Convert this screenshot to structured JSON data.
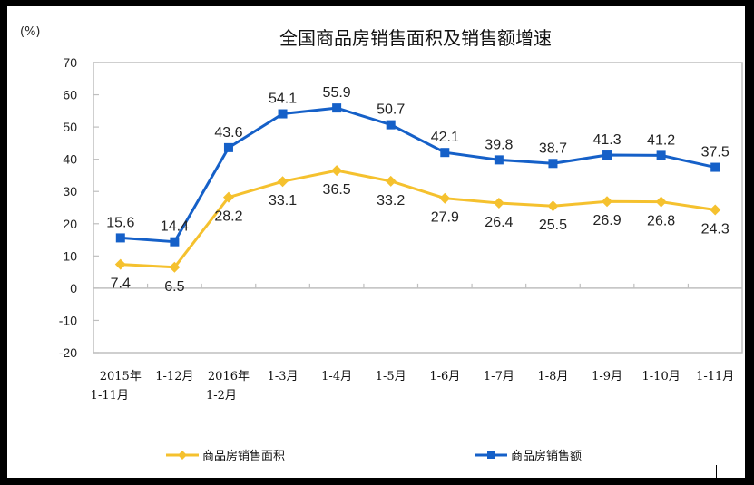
{
  "chart_data": {
    "type": "line",
    "title": "全国商品房销售面积及销售额增速",
    "ylabel": "(%)",
    "xlabel": "",
    "ylim": [
      -20,
      70
    ],
    "yticks": [
      70,
      60,
      50,
      40,
      30,
      20,
      10,
      0,
      -10,
      -20
    ],
    "grid": false,
    "legend_position": "bottom",
    "categories": [
      [
        "2015年",
        "1-11月"
      ],
      [
        "1-12月"
      ],
      [
        "2016年",
        "1-2月"
      ],
      [
        "1-3月"
      ],
      [
        "1-4月"
      ],
      [
        "1-5月"
      ],
      [
        "1-6月"
      ],
      [
        "1-7月"
      ],
      [
        "1-8月"
      ],
      [
        "1-9月"
      ],
      [
        "1-10月"
      ],
      [
        "1-11月"
      ]
    ],
    "series": [
      {
        "name": "商品房销售面积",
        "color": "#F5C12E",
        "marker": "diamond",
        "label_position": "below",
        "values": [
          7.4,
          6.5,
          28.2,
          33.1,
          36.5,
          33.2,
          27.9,
          26.4,
          25.5,
          26.9,
          26.8,
          24.3
        ]
      },
      {
        "name": "商品房销售额",
        "color": "#1560C8",
        "marker": "square",
        "label_position": "above",
        "values": [
          15.6,
          14.4,
          43.6,
          54.1,
          55.9,
          50.7,
          42.1,
          39.8,
          38.7,
          41.3,
          41.2,
          37.5
        ]
      }
    ]
  },
  "colors": {
    "frame": "#000000",
    "background": "#FFFFFF",
    "axis": "#BFBFBF"
  }
}
